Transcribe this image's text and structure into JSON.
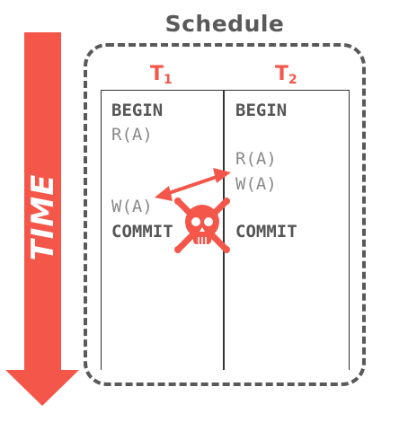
{
  "time_arrow": {
    "label": "TIME",
    "color": "#f4564a"
  },
  "schedule": {
    "title": "Schedule"
  },
  "transactions": [
    {
      "name": "T",
      "subscript": "1",
      "operations": [
        "BEGIN",
        "R(A)",
        "W(A)",
        "COMMIT"
      ]
    },
    {
      "name": "T",
      "subscript": "2",
      "operations": [
        "BEGIN",
        "R(A)",
        "W(A)",
        "COMMIT"
      ]
    }
  ],
  "colors": {
    "accent": "#f4564a",
    "text_dark": "#555555",
    "text_light": "#8a8a8a",
    "frame": "#595959"
  },
  "icons": {
    "conflict": "skull-crossbones-icon",
    "conflict_link": "double-headed-arrow-icon"
  }
}
